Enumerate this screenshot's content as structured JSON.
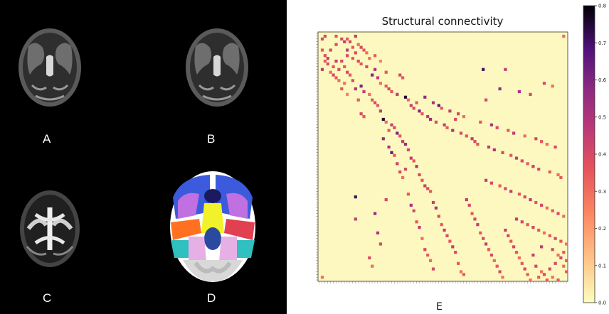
{
  "panels": {
    "a": "A",
    "b": "B",
    "c": "C",
    "d": "D",
    "e": "E"
  },
  "colors": {
    "background_matrix": "#fcf8c0",
    "colormap": "magma_r",
    "brain_bg": "#000000"
  },
  "chart_data": {
    "type": "heatmap",
    "title": "Structural connectivity",
    "xlabel": "",
    "ylabel": "",
    "matrix_size": 90,
    "colorbar": {
      "min": 0.0,
      "max": 0.8,
      "ticks": [
        "0.0",
        "0.1",
        "0.2",
        "0.3",
        "0.4",
        "0.5",
        "0.6",
        "0.7",
        "0.8"
      ]
    },
    "note_cells": "symmetric sparse matrix of region-pair connection strengths; nonzero cells listed as [row, col, value]",
    "cells": [
      [
        1,
        2,
        0.4
      ],
      [
        1,
        6,
        0.35
      ],
      [
        1,
        13,
        0.45
      ],
      [
        1,
        88,
        0.3
      ],
      [
        2,
        8,
        0.4
      ],
      [
        2,
        10,
        0.35
      ],
      [
        3,
        9,
        0.45
      ],
      [
        3,
        11,
        0.4
      ],
      [
        4,
        6,
        0.4
      ],
      [
        4,
        14,
        0.3
      ],
      [
        5,
        12,
        0.35
      ],
      [
        5,
        15,
        0.4
      ],
      [
        6,
        10,
        0.45
      ],
      [
        6,
        16,
        0.35
      ],
      [
        7,
        13,
        0.4
      ],
      [
        7,
        17,
        0.3
      ],
      [
        8,
        10,
        0.4
      ],
      [
        8,
        20,
        0.35
      ],
      [
        9,
        12,
        0.35
      ],
      [
        9,
        18,
        0.3
      ],
      [
        10,
        14,
        0.4
      ],
      [
        10,
        22,
        0.25
      ],
      [
        11,
        15,
        0.35
      ],
      [
        12,
        17,
        0.4
      ],
      [
        13,
        20,
        0.5
      ],
      [
        13,
        59,
        0.7
      ],
      [
        13,
        67,
        0.45
      ],
      [
        14,
        24,
        0.35
      ],
      [
        15,
        19,
        0.6
      ],
      [
        15,
        29,
        0.4
      ],
      [
        16,
        21,
        0.45
      ],
      [
        16,
        30,
        0.35
      ],
      [
        18,
        22,
        0.3
      ],
      [
        18,
        81,
        0.4
      ],
      [
        19,
        24,
        0.35
      ],
      [
        19,
        84,
        0.3
      ],
      [
        20,
        25,
        0.4
      ],
      [
        20,
        65,
        0.55
      ],
      [
        21,
        26,
        0.35
      ],
      [
        21,
        72,
        0.5
      ],
      [
        22,
        28,
        0.45
      ],
      [
        22,
        76,
        0.4
      ],
      [
        23,
        31,
        0.75
      ],
      [
        23,
        38,
        0.55
      ],
      [
        24,
        32,
        0.3
      ],
      [
        24,
        60,
        0.4
      ],
      [
        25,
        35,
        0.35
      ],
      [
        25,
        41,
        0.5
      ],
      [
        26,
        33,
        0.45
      ],
      [
        26,
        43,
        0.65
      ],
      [
        27,
        34,
        0.4
      ],
      [
        27,
        44,
        0.35
      ],
      [
        28,
        36,
        0.6
      ],
      [
        28,
        47,
        0.45
      ],
      [
        29,
        37,
        0.35
      ],
      [
        29,
        50,
        0.4
      ],
      [
        30,
        39,
        0.45
      ],
      [
        30,
        52,
        0.3
      ],
      [
        31,
        40,
        0.55
      ],
      [
        31,
        49,
        0.4
      ],
      [
        32,
        42,
        0.4
      ],
      [
        32,
        58,
        0.35
      ],
      [
        33,
        45,
        0.45
      ],
      [
        33,
        62,
        0.5
      ],
      [
        34,
        46,
        0.35
      ],
      [
        34,
        64,
        0.4
      ],
      [
        35,
        48,
        0.5
      ],
      [
        35,
        68,
        0.35
      ],
      [
        36,
        51,
        0.4
      ],
      [
        36,
        70,
        0.45
      ],
      [
        37,
        53,
        0.35
      ],
      [
        37,
        74,
        0.3
      ],
      [
        38,
        55,
        0.45
      ],
      [
        38,
        78,
        0.4
      ],
      [
        39,
        56,
        0.4
      ],
      [
        39,
        80,
        0.35
      ],
      [
        40,
        57,
        0.35
      ],
      [
        40,
        82,
        0.3
      ],
      [
        41,
        61,
        0.45
      ],
      [
        41,
        85,
        0.4
      ],
      [
        42,
        63,
        0.5
      ],
      [
        43,
        66,
        0.4
      ],
      [
        44,
        69,
        0.35
      ],
      [
        45,
        71,
        0.45
      ],
      [
        46,
        73,
        0.4
      ],
      [
        47,
        75,
        0.35
      ],
      [
        48,
        77,
        0.45
      ],
      [
        49,
        79,
        0.4
      ],
      [
        50,
        83,
        0.35
      ],
      [
        51,
        86,
        0.3
      ],
      [
        52,
        87,
        0.35
      ],
      [
        53,
        60,
        0.45
      ],
      [
        54,
        62,
        0.4
      ],
      [
        55,
        65,
        0.35
      ],
      [
        56,
        67,
        0.4
      ],
      [
        57,
        69,
        0.45
      ],
      [
        58,
        72,
        0.35
      ],
      [
        59,
        74,
        0.4
      ],
      [
        60,
        76,
        0.45
      ],
      [
        61,
        78,
        0.35
      ],
      [
        62,
        80,
        0.4
      ],
      [
        63,
        82,
        0.3
      ],
      [
        64,
        84,
        0.35
      ],
      [
        65,
        86,
        0.4
      ],
      [
        66,
        88,
        0.3
      ],
      [
        67,
        71,
        0.45
      ],
      [
        68,
        73,
        0.4
      ],
      [
        69,
        75,
        0.35
      ],
      [
        70,
        77,
        0.4
      ],
      [
        71,
        79,
        0.35
      ],
      [
        72,
        81,
        0.3
      ],
      [
        73,
        83,
        0.35
      ],
      [
        74,
        85,
        0.4
      ],
      [
        75,
        87,
        0.35
      ],
      [
        76,
        89,
        0.3
      ],
      [
        77,
        80,
        0.45
      ],
      [
        78,
        84,
        0.4
      ],
      [
        79,
        88,
        0.35
      ],
      [
        80,
        86,
        0.3
      ],
      [
        81,
        87,
        0.4
      ],
      [
        82,
        89,
        0.35
      ],
      [
        83,
        85,
        0.4
      ],
      [
        84,
        88,
        0.3
      ],
      [
        86,
        89,
        0.35
      ]
    ]
  }
}
